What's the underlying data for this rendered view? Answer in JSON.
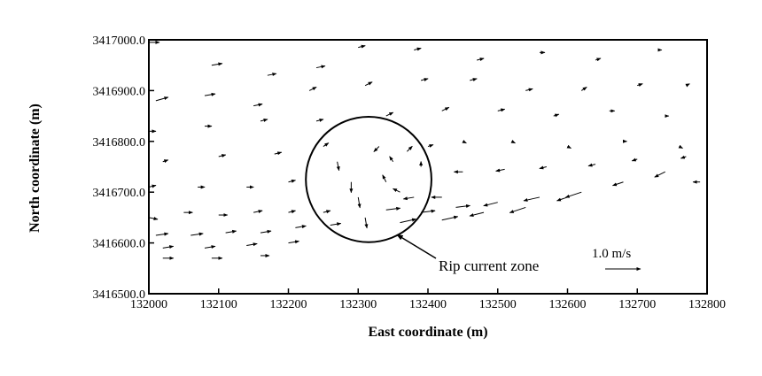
{
  "chart_data": {
    "type": "vector-field",
    "title": "",
    "xlabel": "East coordinate (m)",
    "ylabel": "North coordinate (m)",
    "xlim": [
      132000,
      132800
    ],
    "ylim": [
      3416500,
      3417000
    ],
    "x_ticks": [
      132000,
      132100,
      132200,
      132300,
      132400,
      132500,
      132600,
      132700,
      132800
    ],
    "x_tick_labels": [
      "132000",
      "132100",
      "132200",
      "132300",
      "132400",
      "132500",
      "132600",
      "132700",
      "132800"
    ],
    "y_ticks": [
      3416500,
      3416600,
      3416700,
      3416800,
      3416900,
      3417000
    ],
    "y_tick_labels": [
      "3416500.0",
      "3416600.0",
      "3416700.0",
      "3416800.0",
      "3416900.0",
      "3417000.0"
    ],
    "grid": false,
    "reference_vector": {
      "label": "1.0 m/s",
      "speed_mps": 1.0
    },
    "annotation": {
      "text": "Rip current zone",
      "circle_center": [
        132315,
        3416725
      ],
      "circle_radius_m": 90
    },
    "vectors": [
      {
        "x": 132000,
        "y": 3416995,
        "u": 0.3,
        "v": 0.0
      },
      {
        "x": 132090,
        "y": 3416950,
        "u": 0.3,
        "v": 0.05
      },
      {
        "x": 132170,
        "y": 3416930,
        "u": 0.25,
        "v": 0.05
      },
      {
        "x": 132240,
        "y": 3416945,
        "u": 0.25,
        "v": 0.05
      },
      {
        "x": 132300,
        "y": 3416985,
        "u": 0.2,
        "v": 0.05
      },
      {
        "x": 132380,
        "y": 3416980,
        "u": 0.2,
        "v": 0.05
      },
      {
        "x": 132470,
        "y": 3416960,
        "u": 0.2,
        "v": 0.05
      },
      {
        "x": 132560,
        "y": 3416975,
        "u": 0.15,
        "v": 0.0
      },
      {
        "x": 132640,
        "y": 3416960,
        "u": 0.15,
        "v": 0.05
      },
      {
        "x": 132730,
        "y": 3416980,
        "u": 0.1,
        "v": 0.0
      },
      {
        "x": 132010,
        "y": 3416880,
        "u": 0.35,
        "v": 0.1
      },
      {
        "x": 132080,
        "y": 3416890,
        "u": 0.3,
        "v": 0.05
      },
      {
        "x": 132150,
        "y": 3416870,
        "u": 0.25,
        "v": 0.05
      },
      {
        "x": 132230,
        "y": 3416900,
        "u": 0.2,
        "v": 0.1
      },
      {
        "x": 132310,
        "y": 3416910,
        "u": 0.2,
        "v": 0.1
      },
      {
        "x": 132390,
        "y": 3416920,
        "u": 0.2,
        "v": 0.05
      },
      {
        "x": 132460,
        "y": 3416920,
        "u": 0.2,
        "v": 0.05
      },
      {
        "x": 132540,
        "y": 3416900,
        "u": 0.2,
        "v": 0.05
      },
      {
        "x": 132620,
        "y": 3416900,
        "u": 0.15,
        "v": 0.1
      },
      {
        "x": 132700,
        "y": 3416910,
        "u": 0.15,
        "v": 0.05
      },
      {
        "x": 132770,
        "y": 3416910,
        "u": 0.1,
        "v": 0.05
      },
      {
        "x": 132000,
        "y": 3416820,
        "u": 0.2,
        "v": 0.0
      },
      {
        "x": 132080,
        "y": 3416830,
        "u": 0.2,
        "v": 0.0
      },
      {
        "x": 132160,
        "y": 3416840,
        "u": 0.2,
        "v": 0.05
      },
      {
        "x": 132240,
        "y": 3416840,
        "u": 0.2,
        "v": 0.05
      },
      {
        "x": 132340,
        "y": 3416850,
        "u": 0.2,
        "v": 0.1
      },
      {
        "x": 132420,
        "y": 3416860,
        "u": 0.2,
        "v": 0.1
      },
      {
        "x": 132500,
        "y": 3416860,
        "u": 0.2,
        "v": 0.05
      },
      {
        "x": 132580,
        "y": 3416850,
        "u": 0.15,
        "v": 0.05
      },
      {
        "x": 132660,
        "y": 3416860,
        "u": 0.15,
        "v": 0.0
      },
      {
        "x": 132740,
        "y": 3416850,
        "u": 0.1,
        "v": 0.0
      },
      {
        "x": 132020,
        "y": 3416760,
        "u": 0.15,
        "v": 0.05
      },
      {
        "x": 132100,
        "y": 3416770,
        "u": 0.2,
        "v": 0.05
      },
      {
        "x": 132180,
        "y": 3416775,
        "u": 0.2,
        "v": 0.05
      },
      {
        "x": 132250,
        "y": 3416790,
        "u": 0.15,
        "v": 0.1
      },
      {
        "x": 132450,
        "y": 3416800,
        "u": 0.1,
        "v": -0.05
      },
      {
        "x": 132520,
        "y": 3416800,
        "u": 0.1,
        "v": -0.05
      },
      {
        "x": 132600,
        "y": 3416790,
        "u": 0.1,
        "v": -0.05
      },
      {
        "x": 132680,
        "y": 3416800,
        "u": 0.1,
        "v": 0.0
      },
      {
        "x": 132760,
        "y": 3416790,
        "u": 0.1,
        "v": -0.05
      },
      {
        "x": 132000,
        "y": 3416710,
        "u": 0.2,
        "v": 0.05
      },
      {
        "x": 132070,
        "y": 3416710,
        "u": 0.2,
        "v": 0.0
      },
      {
        "x": 132140,
        "y": 3416710,
        "u": 0.2,
        "v": 0.0
      },
      {
        "x": 132200,
        "y": 3416720,
        "u": 0.2,
        "v": 0.05
      },
      {
        "x": 132000,
        "y": 3416650,
        "u": 0.25,
        "v": -0.05
      },
      {
        "x": 132050,
        "y": 3416660,
        "u": 0.25,
        "v": 0.0
      },
      {
        "x": 132100,
        "y": 3416655,
        "u": 0.25,
        "v": 0.0
      },
      {
        "x": 132150,
        "y": 3416660,
        "u": 0.25,
        "v": 0.05
      },
      {
        "x": 132200,
        "y": 3416660,
        "u": 0.2,
        "v": 0.05
      },
      {
        "x": 132250,
        "y": 3416660,
        "u": 0.2,
        "v": 0.05
      },
      {
        "x": 132010,
        "y": 3416615,
        "u": 0.35,
        "v": 0.05
      },
      {
        "x": 132060,
        "y": 3416615,
        "u": 0.35,
        "v": 0.05
      },
      {
        "x": 132110,
        "y": 3416620,
        "u": 0.3,
        "v": 0.05
      },
      {
        "x": 132160,
        "y": 3416620,
        "u": 0.3,
        "v": 0.05
      },
      {
        "x": 132210,
        "y": 3416630,
        "u": 0.3,
        "v": 0.05
      },
      {
        "x": 132260,
        "y": 3416635,
        "u": 0.3,
        "v": 0.05
      },
      {
        "x": 132020,
        "y": 3416590,
        "u": 0.3,
        "v": 0.05
      },
      {
        "x": 132080,
        "y": 3416590,
        "u": 0.3,
        "v": 0.05
      },
      {
        "x": 132140,
        "y": 3416595,
        "u": 0.3,
        "v": 0.05
      },
      {
        "x": 132200,
        "y": 3416600,
        "u": 0.3,
        "v": 0.05
      },
      {
        "x": 132020,
        "y": 3416570,
        "u": 0.3,
        "v": 0.0
      },
      {
        "x": 132090,
        "y": 3416570,
        "u": 0.3,
        "v": 0.0
      },
      {
        "x": 132160,
        "y": 3416575,
        "u": 0.25,
        "v": 0.0
      },
      {
        "x": 132270,
        "y": 3416760,
        "u": 0.05,
        "v": -0.25
      },
      {
        "x": 132290,
        "y": 3416720,
        "u": 0.0,
        "v": -0.3
      },
      {
        "x": 132300,
        "y": 3416690,
        "u": 0.05,
        "v": -0.3
      },
      {
        "x": 132310,
        "y": 3416650,
        "u": 0.05,
        "v": -0.3
      },
      {
        "x": 132330,
        "y": 3416790,
        "u": -0.15,
        "v": -0.15
      },
      {
        "x": 132350,
        "y": 3416760,
        "u": -0.1,
        "v": 0.15
      },
      {
        "x": 132370,
        "y": 3416780,
        "u": 0.15,
        "v": 0.15
      },
      {
        "x": 132400,
        "y": 3416790,
        "u": 0.15,
        "v": 0.05
      },
      {
        "x": 132390,
        "y": 3416750,
        "u": 0.0,
        "v": 0.15
      },
      {
        "x": 132340,
        "y": 3416720,
        "u": -0.1,
        "v": 0.2
      },
      {
        "x": 132360,
        "y": 3416700,
        "u": -0.2,
        "v": 0.1
      },
      {
        "x": 132380,
        "y": 3416690,
        "u": -0.3,
        "v": -0.05
      },
      {
        "x": 132420,
        "y": 3416690,
        "u": -0.3,
        "v": 0.0
      },
      {
        "x": 132340,
        "y": 3416665,
        "u": 0.4,
        "v": 0.05
      },
      {
        "x": 132390,
        "y": 3416660,
        "u": 0.4,
        "v": 0.05
      },
      {
        "x": 132440,
        "y": 3416670,
        "u": 0.4,
        "v": 0.05
      },
      {
        "x": 132500,
        "y": 3416680,
        "u": -0.4,
        "v": -0.1
      },
      {
        "x": 132560,
        "y": 3416690,
        "u": -0.45,
        "v": -0.1
      },
      {
        "x": 132620,
        "y": 3416700,
        "u": -0.45,
        "v": -0.15
      },
      {
        "x": 132680,
        "y": 3416720,
        "u": -0.3,
        "v": -0.1
      },
      {
        "x": 132740,
        "y": 3416740,
        "u": -0.3,
        "v": -0.15
      },
      {
        "x": 132360,
        "y": 3416640,
        "u": 0.45,
        "v": 0.1
      },
      {
        "x": 132420,
        "y": 3416645,
        "u": 0.45,
        "v": 0.1
      },
      {
        "x": 132480,
        "y": 3416660,
        "u": -0.4,
        "v": -0.1
      },
      {
        "x": 132540,
        "y": 3416670,
        "u": -0.45,
        "v": -0.15
      },
      {
        "x": 132600,
        "y": 3416690,
        "u": -0.3,
        "v": -0.1
      },
      {
        "x": 132450,
        "y": 3416740,
        "u": -0.25,
        "v": 0.0
      },
      {
        "x": 132510,
        "y": 3416745,
        "u": -0.25,
        "v": -0.05
      },
      {
        "x": 132570,
        "y": 3416750,
        "u": -0.2,
        "v": -0.05
      },
      {
        "x": 132640,
        "y": 3416755,
        "u": -0.2,
        "v": -0.05
      },
      {
        "x": 132700,
        "y": 3416765,
        "u": -0.15,
        "v": -0.05
      },
      {
        "x": 132770,
        "y": 3416770,
        "u": -0.15,
        "v": -0.05
      },
      {
        "x": 132790,
        "y": 3416720,
        "u": -0.2,
        "v": 0.0
      }
    ]
  }
}
